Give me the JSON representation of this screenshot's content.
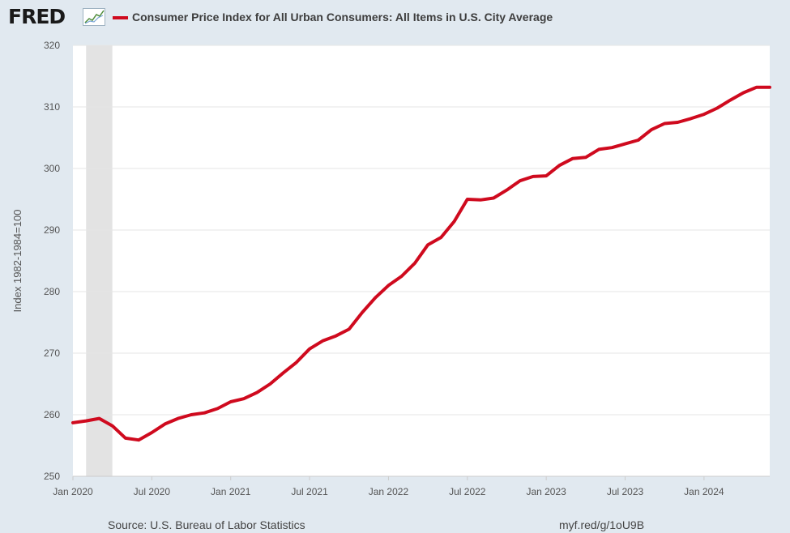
{
  "header": {
    "logo": "FRED",
    "series_label": "Consumer Price Index for All Urban Consumers: All Items in U.S. City Average"
  },
  "footer": {
    "source": "Source: U.S. Bureau of Labor Statistics",
    "link": "myf.red/g/1oU9B"
  },
  "colors": {
    "line": "#cf0a1e",
    "recession": "#e3e3e3",
    "background": "#e1e9f0",
    "plot": "#ffffff"
  },
  "chart_data": {
    "type": "line",
    "title": "Consumer Price Index for All Urban Consumers: All Items in U.S. City Average",
    "xlabel": "",
    "ylabel": "Index 1982-1984=100",
    "ylim": [
      250,
      320
    ],
    "yticks": [
      250,
      260,
      270,
      280,
      290,
      300,
      310,
      320
    ],
    "xticks": [
      "Jan 2020",
      "Jul 2020",
      "Jan 2021",
      "Jul 2021",
      "Jan 2022",
      "Jul 2022",
      "Jan 2023",
      "Jul 2023",
      "Jan 2024"
    ],
    "x_start": "Jan 2020",
    "x_end": "Jun 2024",
    "recession": {
      "start": "Feb 2020",
      "end": "Apr 2020"
    },
    "series": [
      {
        "name": "Consumer Price Index for All Urban Consumers: All Items in U.S. City Average",
        "dates": [
          "2020-01",
          "2020-02",
          "2020-03",
          "2020-04",
          "2020-05",
          "2020-06",
          "2020-07",
          "2020-08",
          "2020-09",
          "2020-10",
          "2020-11",
          "2020-12",
          "2021-01",
          "2021-02",
          "2021-03",
          "2021-04",
          "2021-05",
          "2021-06",
          "2021-07",
          "2021-08",
          "2021-09",
          "2021-10",
          "2021-11",
          "2021-12",
          "2022-01",
          "2022-02",
          "2022-03",
          "2022-04",
          "2022-05",
          "2022-06",
          "2022-07",
          "2022-08",
          "2022-09",
          "2022-10",
          "2022-11",
          "2022-12",
          "2023-01",
          "2023-02",
          "2023-03",
          "2023-04",
          "2023-05",
          "2023-06",
          "2023-07",
          "2023-08",
          "2023-09",
          "2023-10",
          "2023-11",
          "2023-12",
          "2024-01",
          "2024-02",
          "2024-03",
          "2024-04",
          "2024-05",
          "2024-06"
        ],
        "values": [
          258.7,
          259.0,
          259.4,
          258.2,
          256.2,
          255.9,
          257.1,
          258.5,
          259.4,
          260.0,
          260.3,
          261.0,
          262.1,
          262.6,
          263.6,
          265.0,
          266.8,
          268.5,
          270.7,
          272.0,
          272.8,
          273.9,
          276.6,
          279.0,
          281.0,
          282.5,
          284.6,
          287.6,
          288.8,
          291.4,
          295.0,
          294.9,
          295.2,
          296.5,
          298.0,
          298.7,
          298.8,
          300.5,
          301.6,
          301.8,
          303.1,
          303.4,
          304.0,
          304.6,
          306.3,
          307.3,
          307.5,
          308.1,
          308.8,
          309.8,
          311.1,
          312.3,
          313.2,
          313.2
        ]
      }
    ]
  }
}
